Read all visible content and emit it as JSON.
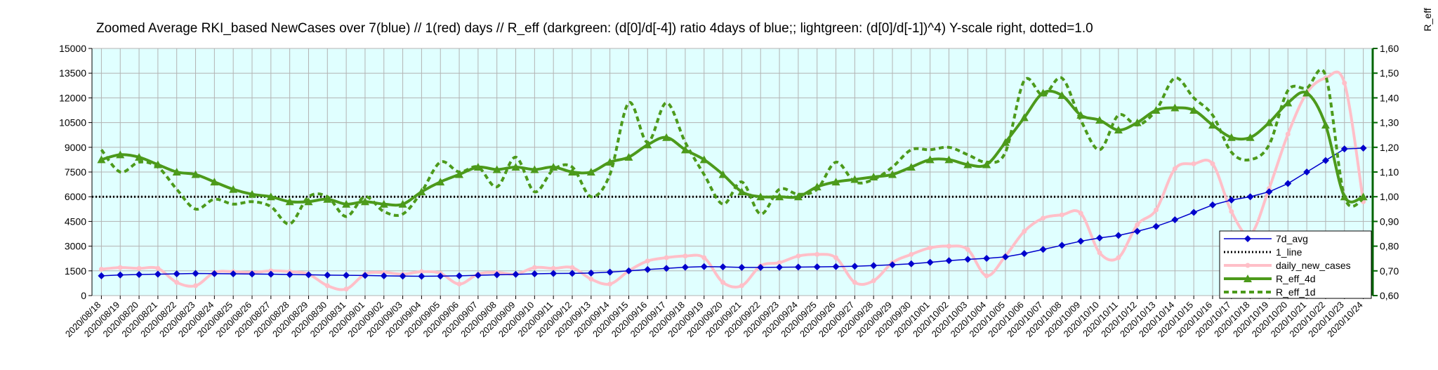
{
  "chart_data": {
    "type": "line",
    "title": "Zoomed Average RKI_based NewCases over 7(blue) // 1(red) days //  R_eff (darkgreen: (d[0]/d[-4]) ratio 4days of blue;; lightgreen: (d[0]/d[-1])^4) Y-scale right, dotted=1.0",
    "xlabel": "",
    "ylabel": "",
    "y2label": "R_eff",
    "ylim": [
      0,
      15000
    ],
    "y2lim": [
      0.6,
      1.6
    ],
    "yticks": [
      "0",
      "1500",
      "3000",
      "4500",
      "6000",
      "7500",
      "9000",
      "10500",
      "12000",
      "13500",
      "15000"
    ],
    "y2ticks": [
      "0,60",
      "0,70",
      "0,80",
      "0,90",
      "1,00",
      "1,10",
      "1,20",
      "1,30",
      "1,40",
      "1,50",
      "1,60"
    ],
    "grid": true,
    "legend_position": "bottom-right",
    "categories": [
      "2020/08/18",
      "2020/08/19",
      "2020/08/20",
      "2020/08/21",
      "2020/08/22",
      "2020/08/23",
      "2020/08/24",
      "2020/08/25",
      "2020/08/26",
      "2020/08/27",
      "2020/08/28",
      "2020/08/29",
      "2020/08/30",
      "2020/08/31",
      "2020/09/01",
      "2020/09/02",
      "2020/09/03",
      "2020/09/04",
      "2020/09/05",
      "2020/09/06",
      "2020/09/07",
      "2020/09/08",
      "2020/09/09",
      "2020/09/10",
      "2020/09/11",
      "2020/09/12",
      "2020/09/13",
      "2020/09/14",
      "2020/09/15",
      "2020/09/16",
      "2020/09/17",
      "2020/09/18",
      "2020/09/19",
      "2020/09/20",
      "2020/09/21",
      "2020/09/22",
      "2020/09/23",
      "2020/09/24",
      "2020/09/25",
      "2020/09/26",
      "2020/09/27",
      "2020/09/28",
      "2020/09/29",
      "2020/09/30",
      "2020/10/01",
      "2020/10/02",
      "2020/10/03",
      "2020/10/04",
      "2020/10/05",
      "2020/10/06",
      "2020/10/07",
      "2020/10/08",
      "2020/10/09",
      "2020/10/10",
      "2020/10/11",
      "2020/10/12",
      "2020/10/13",
      "2020/10/14",
      "2020/10/15",
      "2020/10/16",
      "2020/10/17",
      "2020/10/18",
      "2020/10/19",
      "2020/10/20",
      "2020/10/21",
      "2020/10/22",
      "2020/10/23",
      "2020/10/24"
    ],
    "series": [
      {
        "name": "7d_avg",
        "axis": "left",
        "color": "#0000cc",
        "marker": "diamond",
        "style": "solid",
        "values": [
          1200,
          1250,
          1280,
          1300,
          1320,
          1340,
          1330,
          1320,
          1310,
          1300,
          1280,
          1260,
          1240,
          1230,
          1220,
          1200,
          1180,
          1170,
          1180,
          1200,
          1230,
          1260,
          1290,
          1320,
          1340,
          1350,
          1370,
          1420,
          1500,
          1580,
          1650,
          1720,
          1760,
          1740,
          1710,
          1710,
          1720,
          1730,
          1740,
          1760,
          1780,
          1820,
          1870,
          1930,
          2020,
          2120,
          2200,
          2260,
          2350,
          2550,
          2800,
          3050,
          3300,
          3500,
          3650,
          3900,
          4200,
          4600,
          5050,
          5500,
          5800,
          6000,
          6300,
          6800,
          7500,
          8200,
          8900,
          8950
        ]
      },
      {
        "name": "1_line",
        "axis": "right",
        "color": "#000000",
        "marker": "none",
        "style": "dotted",
        "values": [
          1.0,
          1.0,
          1.0,
          1.0,
          1.0,
          1.0,
          1.0,
          1.0,
          1.0,
          1.0,
          1.0,
          1.0,
          1.0,
          1.0,
          1.0,
          1.0,
          1.0,
          1.0,
          1.0,
          1.0,
          1.0,
          1.0,
          1.0,
          1.0,
          1.0,
          1.0,
          1.0,
          1.0,
          1.0,
          1.0,
          1.0,
          1.0,
          1.0,
          1.0,
          1.0,
          1.0,
          1.0,
          1.0,
          1.0,
          1.0,
          1.0,
          1.0,
          1.0,
          1.0,
          1.0,
          1.0,
          1.0,
          1.0,
          1.0,
          1.0,
          1.0,
          1.0,
          1.0,
          1.0,
          1.0,
          1.0,
          1.0,
          1.0,
          1.0,
          1.0,
          1.0,
          1.0,
          1.0,
          1.0,
          1.0,
          1.0,
          1.0,
          1.0
        ]
      },
      {
        "name": "daily_new_cases",
        "axis": "left",
        "color": "#ffbfc8",
        "marker": "circle",
        "style": "solid",
        "values": [
          1600,
          1700,
          1650,
          1650,
          800,
          600,
          1400,
          1450,
          1400,
          1500,
          1450,
          1300,
          600,
          400,
          1300,
          1400,
          1300,
          1450,
          1350,
          700,
          1300,
          1400,
          1300,
          1700,
          1650,
          1700,
          1000,
          700,
          1500,
          2100,
          2300,
          2400,
          2300,
          800,
          600,
          1800,
          2000,
          2400,
          2500,
          2300,
          800,
          900,
          2000,
          2500,
          2900,
          3000,
          2800,
          1200,
          2400,
          3900,
          4700,
          4900,
          5000,
          2600,
          2300,
          4300,
          5200,
          7700,
          8000,
          8000,
          5100,
          3700,
          6500,
          9800,
          12300,
          13200,
          12900,
          5700
        ]
      },
      {
        "name": "R_eff_4d",
        "axis": "right",
        "color": "#4c9a1b",
        "marker": "triangle",
        "style": "solid",
        "values": [
          1.15,
          1.17,
          1.16,
          1.13,
          1.1,
          1.09,
          1.06,
          1.03,
          1.01,
          1.0,
          0.98,
          0.98,
          0.99,
          0.97,
          0.98,
          0.97,
          0.97,
          1.02,
          1.06,
          1.09,
          1.12,
          1.11,
          1.12,
          1.11,
          1.12,
          1.1,
          1.1,
          1.14,
          1.16,
          1.21,
          1.24,
          1.19,
          1.15,
          1.09,
          1.02,
          1.0,
          1.0,
          1.0,
          1.04,
          1.06,
          1.07,
          1.08,
          1.09,
          1.12,
          1.15,
          1.15,
          1.13,
          1.13,
          1.22,
          1.32,
          1.42,
          1.41,
          1.33,
          1.31,
          1.27,
          1.3,
          1.35,
          1.36,
          1.35,
          1.29,
          1.24,
          1.24,
          1.3,
          1.38,
          1.42,
          1.29,
          1.0,
          1.0
        ]
      },
      {
        "name": "R_eff_1d",
        "axis": "right",
        "color": "#4c9a1b",
        "marker": "none",
        "style": "dashed",
        "values": [
          1.19,
          1.1,
          1.14,
          1.12,
          1.03,
          0.95,
          0.99,
          0.97,
          0.98,
          0.96,
          0.89,
          1.0,
          1.0,
          0.92,
          1.0,
          0.94,
          0.93,
          1.02,
          1.14,
          1.1,
          1.12,
          1.04,
          1.16,
          1.02,
          1.11,
          1.12,
          1.0,
          1.09,
          1.38,
          1.22,
          1.38,
          1.22,
          1.09,
          0.97,
          1.06,
          0.93,
          1.03,
          1.01,
          1.03,
          1.14,
          1.06,
          1.07,
          1.12,
          1.19,
          1.19,
          1.2,
          1.17,
          1.14,
          1.18,
          1.47,
          1.41,
          1.48,
          1.31,
          1.19,
          1.33,
          1.29,
          1.35,
          1.48,
          1.4,
          1.33,
          1.18,
          1.15,
          1.21,
          1.43,
          1.44,
          1.49,
          1.0,
          0.99
        ]
      }
    ]
  }
}
